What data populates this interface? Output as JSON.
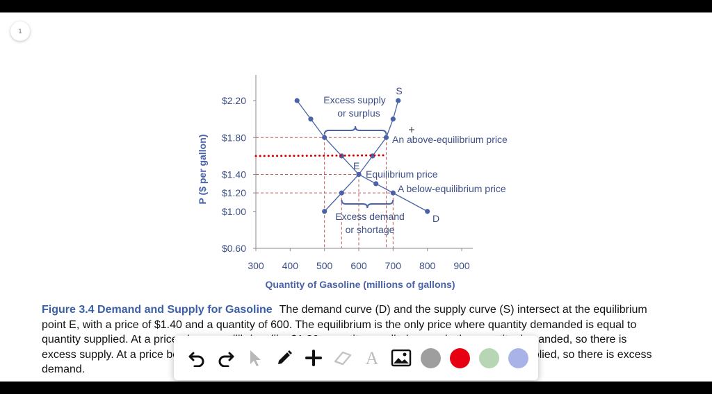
{
  "page_indicator": "1",
  "chart_data": {
    "type": "line",
    "ylabel": "P ($ per gallon)",
    "xlabel": "Quantity of Gasoline (millions of gallons)",
    "x_ticks": [
      "300",
      "400",
      "500",
      "600",
      "700",
      "800",
      "900"
    ],
    "y_ticks": [
      {
        "value": 2.2,
        "label": "$2.20"
      },
      {
        "value": 1.8,
        "label": "$1.80"
      },
      {
        "value": 1.4,
        "label": "$1.40"
      },
      {
        "value": 1.2,
        "label": "$1.20"
      },
      {
        "value": 1.0,
        "label": "$1.00"
      },
      {
        "value": 0.6,
        "label": "$0.60"
      }
    ],
    "xlim": [
      300,
      900
    ],
    "ylim": [
      0.6,
      2.4
    ],
    "series": [
      {
        "name": "D",
        "color": "#4a63a8",
        "points": [
          [
            420,
            2.2
          ],
          [
            460,
            2.0
          ],
          [
            500,
            1.8
          ],
          [
            550,
            1.6
          ],
          [
            600,
            1.4
          ],
          [
            650,
            1.3
          ],
          [
            700,
            1.2
          ],
          [
            800,
            1.0
          ]
        ]
      },
      {
        "name": "S",
        "color": "#4a63a8",
        "points": [
          [
            500,
            1.0
          ],
          [
            550,
            1.2
          ],
          [
            600,
            1.4
          ],
          [
            640,
            1.6
          ],
          [
            680,
            1.8
          ],
          [
            700,
            2.0
          ],
          [
            715,
            2.2
          ]
        ]
      }
    ],
    "annotations": {
      "supply_label": "S",
      "demand_label": "D",
      "equilibrium_point": "E",
      "excess_supply": [
        "Excess supply",
        "or surplus"
      ],
      "excess_demand": [
        "Excess demand",
        "or shortage"
      ],
      "above_price": "An above-equilibrium price",
      "eq_price": "Equilibrium price",
      "below_price": "A below-equilibrium price"
    },
    "red_dotted_line": {
      "color": "#d40000",
      "y": 1.6
    }
  },
  "caption": {
    "title": "Figure 3.4 Demand and Supply for Gasoline",
    "text": "The demand curve (D) and the supply curve (S) intersect at the equilibrium point E, with a price of $1.40 and a quantity of 600. The equilibrium is the only price where quantity demanded is equal to quantity supplied. At a price above equilibrium like $1.80, quantity supplied exceeds the quantity demanded, so there is excess supply. At a price below equilibrium such as $1.20, quantity demanded exceeds quantity supplied, so there is excess demand."
  },
  "toolbar": {
    "tools": [
      "undo-icon",
      "redo-icon",
      "pointer-icon",
      "pen-icon",
      "add-icon",
      "eraser-icon",
      "text-icon",
      "image-icon"
    ],
    "colors": [
      "#9e9e9e",
      "#e60012",
      "#b6d6b4",
      "#a9b3e8"
    ]
  }
}
